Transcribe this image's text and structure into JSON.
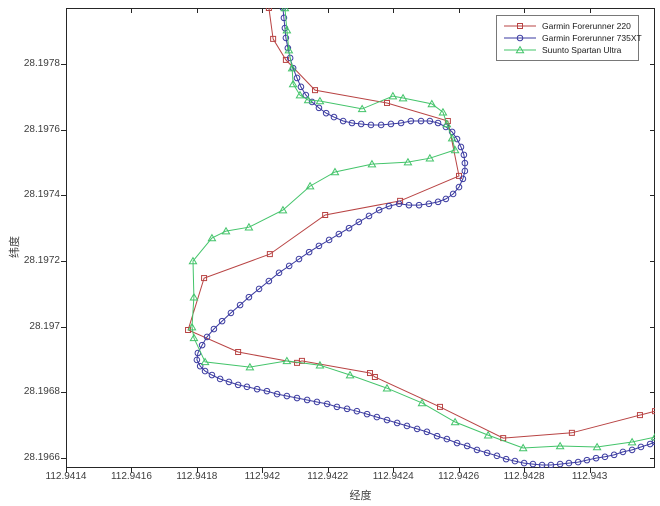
{
  "legend": {
    "items": [
      {
        "label": "Garmin Forerunner 220"
      },
      {
        "label": "Garmin Forerunner 735XT"
      },
      {
        "label": "Suunto Spartan Ultra"
      }
    ]
  },
  "chart_data": {
    "type": "line",
    "title": "",
    "xlabel": "经度",
    "ylabel": "纬度",
    "xlim": [
      112.9414,
      112.9432
    ],
    "ylim": [
      28.19657,
      28.19797
    ],
    "grid": false,
    "legend_position": "top-right",
    "xticks": [
      112.9414,
      112.9416,
      112.9418,
      112.942,
      112.9422,
      112.9424,
      112.9426,
      112.9428,
      112.943
    ],
    "xtick_labels": [
      "112.9414",
      "112.9416",
      "112.9418",
      "112.942",
      "112.9422",
      "112.9424",
      "112.9426",
      "112.9428",
      "112.943"
    ],
    "yticks": [
      28.1966,
      28.1968,
      28.197,
      28.1972,
      28.1974,
      28.1976,
      28.1978
    ],
    "ytick_labels": [
      "28.1966",
      "28.1968",
      "28.197",
      "28.1972",
      "28.1974",
      "28.1976",
      "28.1978"
    ],
    "axis_color": "#262626",
    "series": [
      {
        "name": "Garmin Forerunner 220",
        "color": "#b84343",
        "marker": "square",
        "points": [
          [
            112.94202,
            28.19797
          ],
          [
            112.942033,
            28.197876
          ],
          [
            112.942072,
            28.197812
          ],
          [
            112.942161,
            28.19772
          ],
          [
            112.942381,
            28.197681
          ],
          [
            112.942567,
            28.197626
          ],
          [
            112.942601,
            28.197459
          ],
          [
            112.942421,
            28.197383
          ],
          [
            112.942192,
            28.19734
          ],
          [
            112.942023,
            28.197221
          ],
          [
            112.941822,
            28.197148
          ],
          [
            112.941773,
            28.19699
          ],
          [
            112.941926,
            28.196923
          ],
          [
            112.942106,
            28.19689
          ],
          [
            112.942121,
            28.196896
          ],
          [
            112.942329,
            28.196859
          ],
          [
            112.942344,
            28.196847
          ],
          [
            112.942543,
            28.196756
          ],
          [
            112.942736,
            28.196661
          ],
          [
            112.942946,
            28.196677
          ],
          [
            112.943154,
            28.196731
          ],
          [
            112.9432,
            28.196743
          ]
        ]
      },
      {
        "name": "Garmin Forerunner 735XT",
        "color": "#3a3aa0",
        "marker": "circle",
        "points": [
          [
            112.942063,
            28.19797
          ],
          [
            112.942066,
            28.19794
          ],
          [
            112.942069,
            28.197909
          ],
          [
            112.942072,
            28.197879
          ],
          [
            112.942078,
            28.197848
          ],
          [
            112.942085,
            28.197818
          ],
          [
            112.942094,
            28.197787
          ],
          [
            112.942106,
            28.197757
          ],
          [
            112.942118,
            28.19773
          ],
          [
            112.942133,
            28.197705
          ],
          [
            112.942152,
            28.197684
          ],
          [
            112.942173,
            28.197666
          ],
          [
            112.942195,
            28.19765
          ],
          [
            112.942219,
            28.197638
          ],
          [
            112.942247,
            28.197626
          ],
          [
            112.942274,
            28.19762
          ],
          [
            112.942302,
            28.197617
          ],
          [
            112.942332,
            28.197614
          ],
          [
            112.942363,
            28.197614
          ],
          [
            112.942393,
            28.197617
          ],
          [
            112.942424,
            28.19762
          ],
          [
            112.942454,
            28.197626
          ],
          [
            112.942485,
            28.197626
          ],
          [
            112.942512,
            28.197626
          ],
          [
            112.942537,
            28.19762
          ],
          [
            112.942561,
            28.197608
          ],
          [
            112.94258,
            28.197593
          ],
          [
            112.942595,
            28.197571
          ],
          [
            112.942607,
            28.197547
          ],
          [
            112.942616,
            28.197523
          ],
          [
            112.942619,
            28.197498
          ],
          [
            112.942619,
            28.197474
          ],
          [
            112.942613,
            28.19745
          ],
          [
            112.942601,
            28.197425
          ],
          [
            112.942583,
            28.197404
          ],
          [
            112.942561,
            28.197389
          ],
          [
            112.942537,
            28.19738
          ],
          [
            112.942509,
            28.197374
          ],
          [
            112.942479,
            28.19737
          ],
          [
            112.942448,
            28.19737
          ],
          [
            112.942418,
            28.197374
          ],
          [
            112.942387,
            28.197367
          ],
          [
            112.942357,
            28.197355
          ],
          [
            112.942326,
            28.197337
          ],
          [
            112.942295,
            28.197319
          ],
          [
            112.942265,
            28.1973
          ],
          [
            112.942234,
            28.197282
          ],
          [
            112.942204,
            28.197264
          ],
          [
            112.942173,
            28.197246
          ],
          [
            112.942143,
            28.197227
          ],
          [
            112.942112,
            28.197206
          ],
          [
            112.942082,
            28.197185
          ],
          [
            112.942051,
            28.197164
          ],
          [
            112.94202,
            28.197139
          ],
          [
            112.94199,
            28.197115
          ],
          [
            112.941959,
            28.19709
          ],
          [
            112.941932,
            28.197066
          ],
          [
            112.941904,
            28.197042
          ],
          [
            112.941877,
            28.197017
          ],
          [
            112.941852,
            28.196993
          ],
          [
            112.941831,
            28.196969
          ],
          [
            112.941816,
            28.196944
          ],
          [
            112.941803,
            28.19692
          ],
          [
            112.9418,
            28.196899
          ],
          [
            112.94181,
            28.19688
          ],
          [
            112.941825,
            28.196865
          ],
          [
            112.941846,
            28.196853
          ],
          [
            112.941871,
            28.196841
          ],
          [
            112.941898,
            28.196832
          ],
          [
            112.941926,
            28.196823
          ],
          [
            112.941953,
            28.196817
          ],
          [
            112.941984,
            28.19681
          ],
          [
            112.942014,
            28.196804
          ],
          [
            112.942045,
            28.196795
          ],
          [
            112.942075,
            28.196789
          ],
          [
            112.942106,
            28.196783
          ],
          [
            112.942137,
            28.196777
          ],
          [
            112.942167,
            28.196771
          ],
          [
            112.942198,
            28.196765
          ],
          [
            112.942228,
            28.196756
          ],
          [
            112.942259,
            28.19675
          ],
          [
            112.942289,
            28.196743
          ],
          [
            112.94232,
            28.196734
          ],
          [
            112.94235,
            28.196725
          ],
          [
            112.942381,
            28.196716
          ],
          [
            112.942412,
            28.196707
          ],
          [
            112.942442,
            28.196698
          ],
          [
            112.942473,
            28.196689
          ],
          [
            112.942503,
            28.19668
          ],
          [
            112.942534,
            28.196667
          ],
          [
            112.942564,
            28.196658
          ],
          [
            112.942595,
            28.196646
          ],
          [
            112.942626,
            28.196637
          ],
          [
            112.942656,
            28.196625
          ],
          [
            112.942687,
            28.196616
          ],
          [
            112.942717,
            28.196607
          ],
          [
            112.942745,
            28.196597
          ],
          [
            112.942772,
            28.196591
          ],
          [
            112.9428,
            28.196585
          ],
          [
            112.942827,
            28.196582
          ],
          [
            112.942855,
            28.196579
          ],
          [
            112.942882,
            28.196579
          ],
          [
            112.94291,
            28.196582
          ],
          [
            112.942937,
            28.196585
          ],
          [
            112.942965,
            28.196588
          ],
          [
            112.942992,
            28.196594
          ],
          [
            112.94302,
            28.1966
          ],
          [
            112.943047,
            28.196604
          ],
          [
            112.943075,
            28.19661
          ],
          [
            112.943102,
            28.196619
          ],
          [
            112.94313,
            28.196625
          ],
          [
            112.943157,
            28.196634
          ],
          [
            112.943185,
            28.196643
          ],
          [
            112.9432,
            28.196649
          ]
        ]
      },
      {
        "name": "Suunto Spartan Ultra",
        "color": "#43c46a",
        "marker": "triangle",
        "points": [
          [
            112.942069,
            28.19797
          ],
          [
            112.942075,
            28.197903
          ],
          [
            112.942081,
            28.197842
          ],
          [
            112.942091,
            28.197787
          ],
          [
            112.942094,
            28.197739
          ],
          [
            112.942115,
            28.197705
          ],
          [
            112.94214,
            28.19769
          ],
          [
            112.942176,
            28.197687
          ],
          [
            112.942305,
            28.197663
          ],
          [
            112.942399,
            28.197702
          ],
          [
            112.94243,
            28.197696
          ],
          [
            112.942518,
            28.197678
          ],
          [
            112.942552,
            28.197653
          ],
          [
            112.942564,
            28.197617
          ],
          [
            112.94258,
            28.197574
          ],
          [
            112.942589,
            28.197538
          ],
          [
            112.942512,
            28.197513
          ],
          [
            112.942445,
            28.197501
          ],
          [
            112.942335,
            28.197495
          ],
          [
            112.942222,
            28.197471
          ],
          [
            112.942146,
            28.197428
          ],
          [
            112.942063,
            28.197355
          ],
          [
            112.941959,
            28.197303
          ],
          [
            112.941889,
            28.197291
          ],
          [
            112.941846,
            28.19727
          ],
          [
            112.941788,
            28.1972
          ],
          [
            112.941791,
            28.19709
          ],
          [
            112.941785,
            28.196999
          ],
          [
            112.941791,
            28.196966
          ],
          [
            112.941825,
            28.196893
          ],
          [
            112.941962,
            28.196877
          ],
          [
            112.942075,
            28.196896
          ],
          [
            112.942176,
            28.196883
          ],
          [
            112.942268,
            28.196853
          ],
          [
            112.942381,
            28.196813
          ],
          [
            112.942488,
            28.196768
          ],
          [
            112.942589,
            28.19671
          ],
          [
            112.94269,
            28.19667
          ],
          [
            112.942797,
            28.196631
          ],
          [
            112.94291,
            28.196637
          ],
          [
            112.943023,
            28.196634
          ],
          [
            112.94313,
            28.196649
          ],
          [
            112.9432,
            28.196664
          ]
        ]
      }
    ]
  }
}
